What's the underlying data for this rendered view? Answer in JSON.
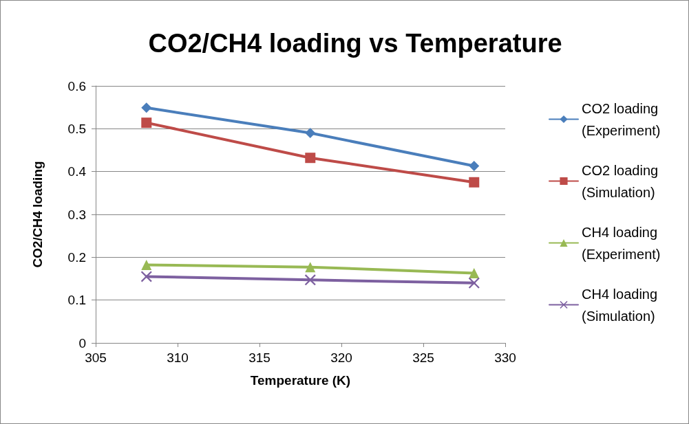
{
  "chart_data": {
    "type": "line",
    "title": "CO2/CH4 loading vs Temperature",
    "xlabel": "Temperature (K)",
    "ylabel": "CO2/CH4 loading",
    "xlim": [
      305,
      330
    ],
    "xticks": [
      305,
      310,
      315,
      320,
      325,
      330
    ],
    "ylim": [
      0,
      0.6
    ],
    "yticks": [
      0,
      0.1,
      0.2,
      0.3,
      0.4,
      0.5,
      0.6
    ],
    "grid": "y",
    "legend": "right",
    "line_style": "solid",
    "x": [
      308.1,
      318.1,
      328.1
    ],
    "series": [
      {
        "name": "CO2 loading (Experiment)",
        "color": "#4a7ebb",
        "marker": "diamond",
        "values": [
          0.549,
          0.49,
          0.413
        ]
      },
      {
        "name": "CO2 loading (Simulation)",
        "color": "#be4b48",
        "marker": "square",
        "values": [
          0.514,
          0.432,
          0.375
        ]
      },
      {
        "name": "CH4 loading (Experiment)",
        "color": "#98b954",
        "marker": "triangle",
        "values": [
          0.182,
          0.177,
          0.163
        ]
      },
      {
        "name": "CH4 loading (Simulation)",
        "color": "#7d60a0",
        "marker": "cross",
        "values": [
          0.155,
          0.147,
          0.14
        ]
      }
    ]
  }
}
